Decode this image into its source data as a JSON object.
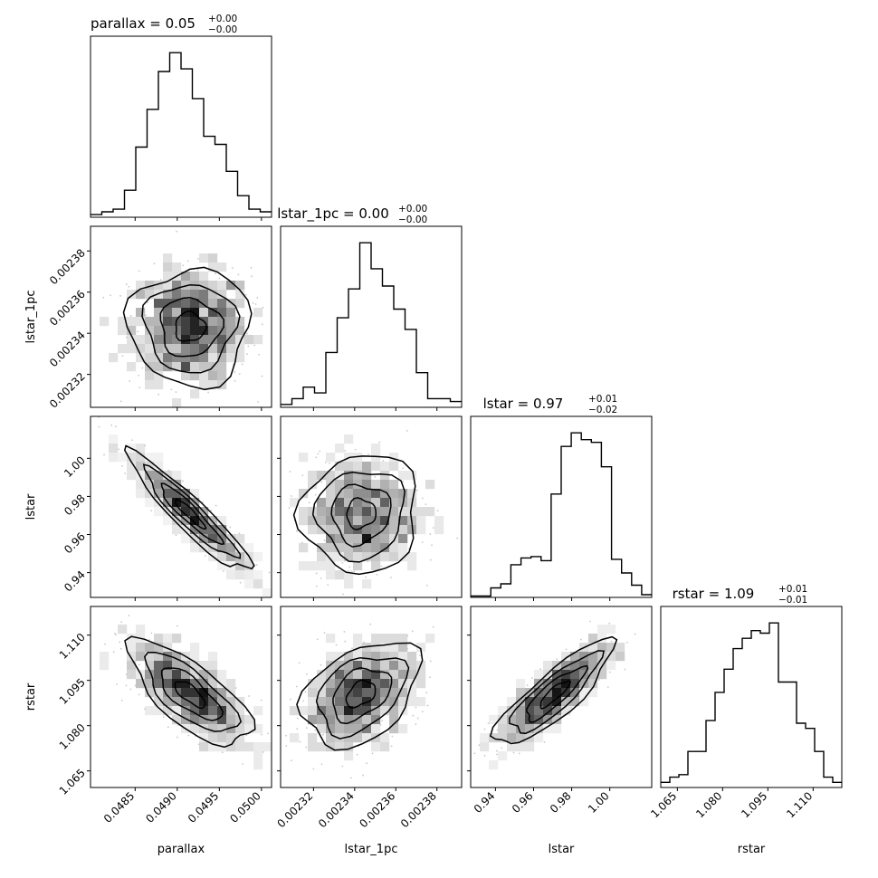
{
  "chart_data": {
    "type": "corner",
    "parameters": [
      {
        "name": "parallax",
        "title_value": "0.05",
        "plus": "+0.00",
        "minus": "−0.00",
        "range": [
          0.04797,
          0.05012
        ],
        "ticks": [
          "0.0485",
          "0.0490",
          "0.0495",
          "0.0500"
        ],
        "tick_values": [
          0.0485,
          0.049,
          0.0495,
          0.05
        ]
      },
      {
        "name": "lstar_1pc",
        "title_value": "0.00",
        "plus": "+0.00",
        "minus": "−0.00",
        "range": [
          0.002304,
          0.002392
        ],
        "ticks": [
          "0.00232",
          "0.00234",
          "0.00236",
          "0.00238"
        ],
        "tick_values": [
          0.00232,
          0.00234,
          0.00236,
          0.00238
        ]
      },
      {
        "name": "lstar",
        "title_value": "0.97",
        "plus": "+0.01",
        "minus": "−0.02",
        "range": [
          0.927,
          1.022
        ],
        "ticks": [
          "0.94",
          "0.96",
          "0.98",
          "1.00"
        ],
        "tick_values": [
          0.94,
          0.96,
          0.98,
          1.0
        ]
      },
      {
        "name": "rstar",
        "title_value": "1.09",
        "plus": "+0.01",
        "minus": "−0.01",
        "range": [
          1.0595,
          1.1195
        ],
        "ticks": [
          "1.065",
          "1.080",
          "1.095",
          "1.110"
        ],
        "tick_values": [
          1.065,
          1.08,
          1.095,
          1.11
        ]
      }
    ],
    "histograms": [
      {
        "param": "parallax",
        "counts": [
          1,
          2,
          3,
          10,
          26,
          40,
          54,
          61,
          55,
          44,
          30,
          27,
          17,
          8,
          3,
          2
        ]
      },
      {
        "param": "lstar_1pc",
        "counts": [
          1,
          3,
          7,
          5,
          19,
          31,
          41,
          57,
          48,
          42,
          34,
          27,
          12,
          3,
          3,
          2
        ]
      },
      {
        "param": "lstar",
        "counts": [
          1,
          1,
          7,
          10,
          24,
          29,
          30,
          27,
          76,
          111,
          121,
          116,
          114,
          96,
          28,
          18,
          9,
          2
        ]
      },
      {
        "param": "rstar",
        "counts": [
          2,
          4,
          5,
          14,
          14,
          26,
          37,
          46,
          54,
          58,
          61,
          60,
          64,
          41,
          41,
          25,
          23,
          14,
          4,
          2
        ]
      }
    ],
    "correlations": [
      {
        "x": "parallax",
        "y": "lstar_1pc",
        "rho": 0.0
      },
      {
        "x": "parallax",
        "y": "lstar",
        "rho": -0.93
      },
      {
        "x": "lstar_1pc",
        "y": "lstar",
        "rho": 0.05
      },
      {
        "x": "parallax",
        "y": "rstar",
        "rho": -0.72
      },
      {
        "x": "lstar_1pc",
        "y": "rstar",
        "rho": 0.38
      },
      {
        "x": "lstar",
        "y": "rstar",
        "rho": 0.85
      }
    ],
    "centers": {
      "parallax": 0.04915,
      "lstar_1pc": 0.002343,
      "lstar": 0.971,
      "rstar": 1.0905
    },
    "sigmas": {
      "parallax": 0.00036,
      "lstar_1pc": 1.42e-05,
      "lstar": 0.0155,
      "rstar": 0.0087
    },
    "grid": false,
    "legend": "none"
  }
}
